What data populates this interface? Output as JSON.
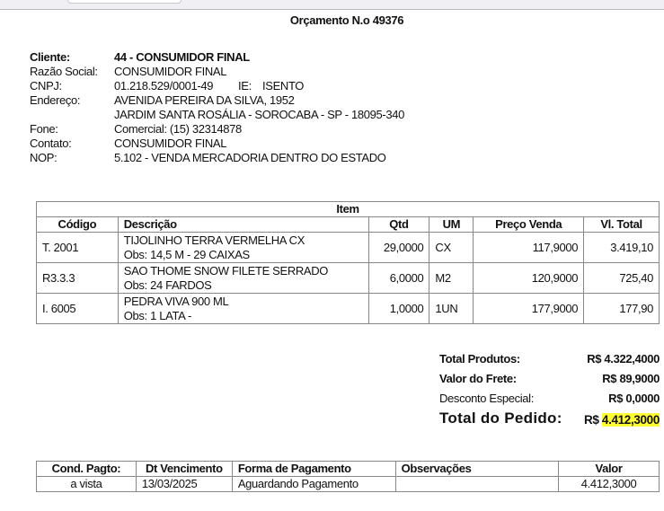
{
  "title": "Orçamento N.o 49376",
  "client": {
    "labels": {
      "cliente": "Cliente:",
      "razao": "Razão Social:",
      "cnpj": "CNPJ:",
      "ie": "IE:",
      "endereco": "Endereço:",
      "fone": "Fone:",
      "contato": "Contato:",
      "nop": "NOP:"
    },
    "cliente": "44 - CONSUMIDOR FINAL",
    "razao": "CONSUMIDOR FINAL",
    "cnpj": "01.218.529/0001-49",
    "ie": "ISENTO",
    "endereco1": "AVENIDA PEREIRA DA SILVA, 1952",
    "endereco2": "JARDIM SANTA ROSÁLIA - SOROCABA - SP - 18095-340",
    "fone": "Comercial: (15) 32314878",
    "contato": "CONSUMIDOR FINAL",
    "nop": "5.102 - VENDA MERCADORIA DENTRO DO ESTADO"
  },
  "items": {
    "caption": "Item",
    "headers": [
      "Código",
      "Descrição",
      "Qtd",
      "UM",
      "Preço Venda",
      "Vl. Total"
    ],
    "rows": [
      {
        "codigo": "T. 2001",
        "descricao": "TIJOLINHO TERRA VERMELHA CX",
        "obs": "Obs: 14,5 M - 29 CAIXAS",
        "qtd": "29,0000",
        "um": "CX",
        "preco": "117,9000",
        "total": "3.419,10"
      },
      {
        "codigo": "R3.3.3",
        "descricao": "SAO THOME SNOW FILETE SERRADO",
        "obs": "Obs: 24 FARDOS",
        "qtd": "6,0000",
        "um": "M2",
        "preco": "120,9000",
        "total": "725,40"
      },
      {
        "codigo": "I. 6005",
        "descricao": "PEDRA VIVA 900 ML",
        "obs": "Obs: 1 LATA -",
        "qtd": "1,0000",
        "um": "1UN",
        "preco": "177,9000",
        "total": "177,90"
      }
    ]
  },
  "totals": {
    "produtos_label": "Total Produtos:",
    "produtos": "R$ 4.322,4000",
    "frete_label": "Valor do Frete:",
    "frete": "R$ 89,9000",
    "desconto_label": "Desconto Especial:",
    "desconto": "R$ 0,0000",
    "pedido_label": "Total do Pedido:",
    "pedido_prefix": "R$",
    "pedido": "4.412,3000",
    "highlight": "#ffff33"
  },
  "payment": {
    "headers": [
      "Cond. Pagto:",
      "Dt Vencimento",
      "Forma de Pagamento",
      "Observações",
      "Valor"
    ],
    "row": {
      "cond": "a vista",
      "venc": "13/03/2025",
      "forma": "Aguardando Pagamento",
      "obs": "",
      "valor": "4.412,3000"
    }
  }
}
